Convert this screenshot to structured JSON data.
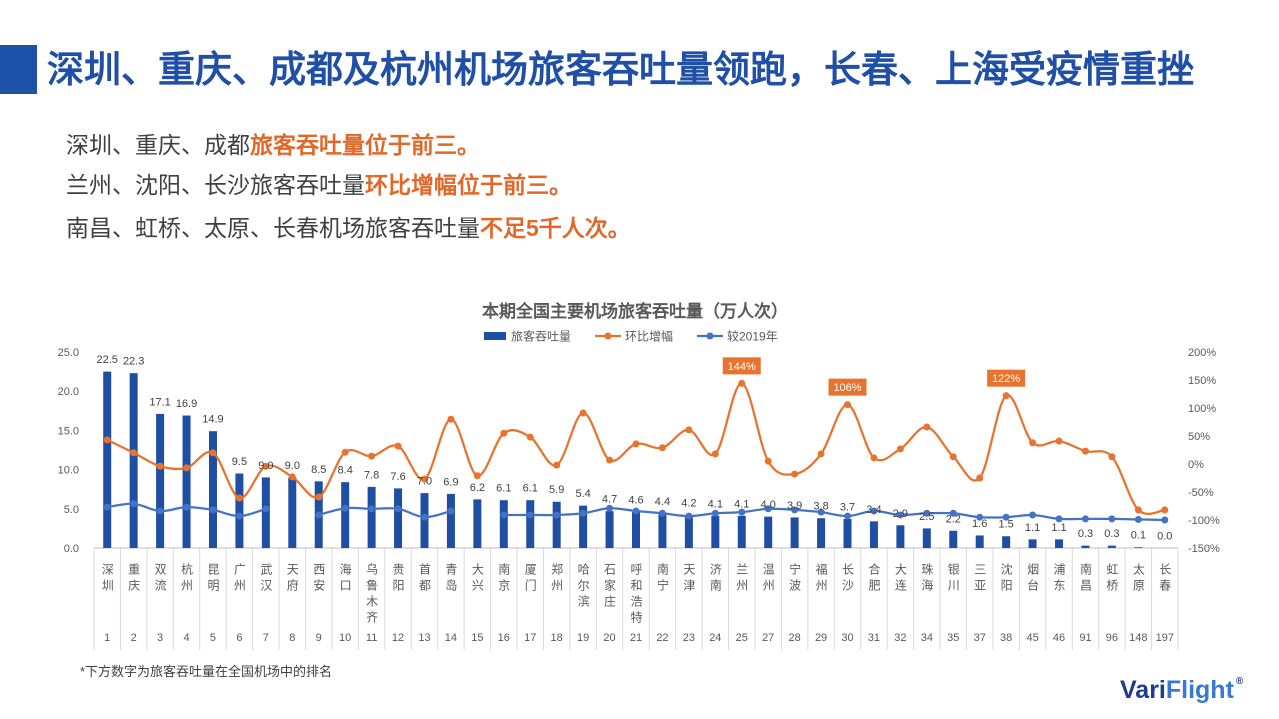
{
  "slide": {
    "title": "深圳、重庆、成都及杭州机场旅客吞吐量领跑，长春、上海受疫情重挫",
    "bullets": [
      {
        "text": "深圳、重庆、成都",
        "highlight": "旅客吞吐量位于前三。"
      },
      {
        "text": "兰州、沈阳、长沙旅客吞吐量",
        "highlight": "环比增幅位于前三。"
      },
      {
        "text": "南昌、虹桥、太原、长春机场旅客吞吐量",
        "highlight": "不足5千人次。"
      }
    ],
    "footnote": "*下方数字为旅客吞吐量在全国机场中的排名",
    "logo": {
      "word_1": "Vari",
      "word_2": "Flight",
      "mark": "®"
    },
    "colors": {
      "title": "#1f4fa6",
      "accent_bar": "#1d52a8",
      "highlight": "#e2682a",
      "text": "#404040"
    }
  },
  "chart_data": {
    "type": "bar",
    "title": "本期全国主要机场旅客吞吐量（万人次）",
    "categories": [
      "深圳",
      "重庆",
      "双流",
      "杭州",
      "昆明",
      "广州",
      "武汉",
      "天府",
      "西安",
      "海口",
      "乌鲁木齐",
      "贵阳",
      "首都",
      "青岛",
      "大兴",
      "南京",
      "厦门",
      "郑州",
      "哈尔滨",
      "石家庄",
      "呼和浩特",
      "南宁",
      "天津",
      "济南",
      "兰州",
      "温州",
      "宁波",
      "福州",
      "长沙",
      "合肥",
      "大连",
      "珠海",
      "银川",
      "三亚",
      "沈阳",
      "烟台",
      "浦东",
      "南昌",
      "虹桥",
      "太原",
      "长春"
    ],
    "ranks": [
      1,
      2,
      3,
      4,
      5,
      6,
      7,
      8,
      9,
      10,
      11,
      12,
      13,
      14,
      15,
      16,
      17,
      18,
      19,
      20,
      21,
      22,
      23,
      24,
      25,
      27,
      28,
      29,
      30,
      31,
      32,
      34,
      35,
      37,
      38,
      45,
      46,
      91,
      96,
      148,
      197
    ],
    "series": [
      {
        "name": "旅客吞吐量",
        "type": "bar",
        "axis": "left",
        "color": "#1f4fa3",
        "values": [
          22.5,
          22.3,
          17.1,
          16.9,
          14.9,
          9.5,
          9.0,
          9.0,
          8.5,
          8.4,
          7.8,
          7.6,
          7.0,
          6.9,
          6.2,
          6.1,
          6.1,
          5.9,
          5.4,
          4.7,
          4.6,
          4.4,
          4.2,
          4.1,
          4.1,
          4.0,
          3.9,
          3.8,
          3.7,
          3.4,
          2.9,
          2.5,
          2.2,
          1.6,
          1.5,
          1.1,
          1.1,
          0.3,
          0.3,
          0.1,
          0.0
        ]
      },
      {
        "name": "环比增幅",
        "type": "line",
        "axis": "right",
        "color": "#e8732e",
        "values": [
          43,
          20,
          -4,
          -7,
          20,
          -61,
          -4,
          -23,
          -59,
          21,
          14,
          32,
          -27,
          80,
          -21,
          55,
          48,
          -2,
          91,
          7,
          36,
          29,
          61,
          18,
          144,
          5,
          -18,
          18,
          106,
          11,
          27,
          66,
          13,
          -25,
          122,
          38,
          41,
          23,
          13,
          -82,
          -82
        ]
      },
      {
        "name": "较2019年",
        "type": "line",
        "axis": "right",
        "color": "#4472c4",
        "values": [
          -77,
          -71,
          -84,
          -77,
          -82,
          -93,
          -80,
          null,
          -91,
          -79,
          -80,
          -80,
          -95,
          -84,
          null,
          -91,
          -91,
          -91,
          -88,
          -79,
          -84,
          -88,
          -93,
          -88,
          -86,
          -80,
          -82,
          -86,
          -93,
          -84,
          -91,
          -88,
          -88,
          -95,
          -95,
          -91,
          -98,
          -98,
          -98,
          -99,
          -100
        ]
      }
    ],
    "y_left": {
      "lim": [
        0,
        25
      ],
      "tick_labels": [
        "0.0",
        "5.0",
        "10.0",
        "15.0",
        "20.0",
        "25.0"
      ]
    },
    "y_right": {
      "lim": [
        -150,
        200
      ],
      "tick_labels": [
        "-150%",
        "-100%",
        "-50%",
        "0%",
        "50%",
        "100%",
        "150%",
        "200%"
      ]
    },
    "annotations": [
      {
        "category": "兰州",
        "series": "环比增幅",
        "label": "144%"
      },
      {
        "category": "长沙",
        "series": "环比增幅",
        "label": "106%"
      },
      {
        "category": "沈阳",
        "series": "环比增幅",
        "label": "122%"
      }
    ],
    "legend_position": "top",
    "grid": false
  }
}
